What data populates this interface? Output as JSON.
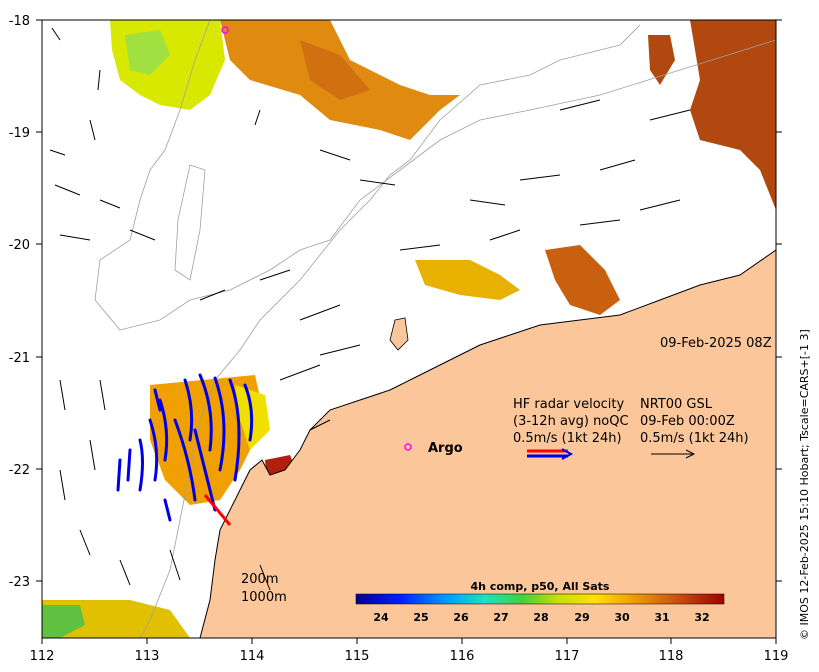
{
  "map": {
    "date_label": "09-Feb-2025 08Z",
    "credit": "© IMOS 12-Feb-2025 15:10 Hobart; Tscale=CARS+[-1 3]",
    "lon_ticks": [
      "112",
      "113",
      "114",
      "115",
      "116",
      "117",
      "118",
      "119"
    ],
    "lat_ticks": [
      "-18",
      "-19",
      "-20",
      "-21",
      "-22",
      "-23"
    ],
    "argo_label": "Argo",
    "depth_labels": [
      "200m",
      "1000m"
    ],
    "legend": {
      "hf_title_1": "HF radar velocity",
      "hf_title_2": "(3-12h avg) noQC",
      "hf_scale": "0.5m/s (1kt 24h)",
      "nrt_title_1": "NRT00 GSL",
      "nrt_title_2": "09-Feb 00:00Z",
      "nrt_scale": "0.5m/s (1kt 24h)"
    },
    "colorbar": {
      "title": "4h comp, p50, All Sats",
      "ticks": [
        "24",
        "25",
        "26",
        "27",
        "28",
        "29",
        "30",
        "31",
        "32"
      ]
    },
    "colors": {
      "land": "#fbc79a",
      "hf_arrow": "#0000e6",
      "hf_arrow_red": "#ff0000",
      "argo": "#ff00ff"
    }
  }
}
